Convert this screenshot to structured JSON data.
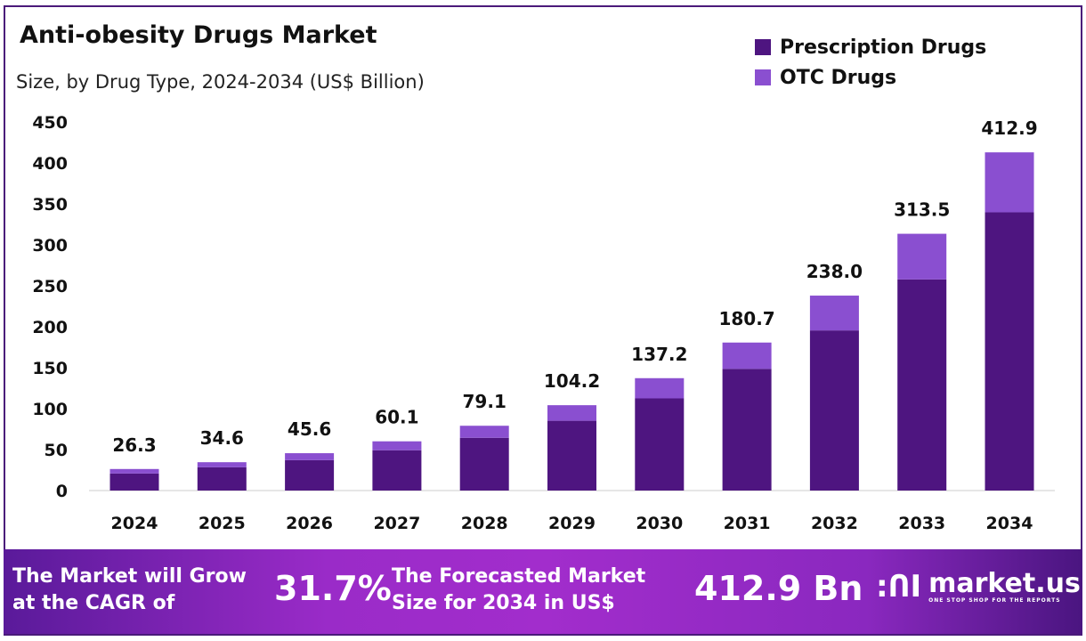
{
  "chart_data": {
    "type": "bar",
    "stacked": true,
    "title": "Anti-obesity Drugs Market",
    "subtitle": "Size, by Drug Type, 2024-2034 (US$ Billion)",
    "categories": [
      "2024",
      "2025",
      "2026",
      "2027",
      "2028",
      "2029",
      "2030",
      "2031",
      "2032",
      "2033",
      "2034"
    ],
    "series": [
      {
        "name": "Prescription Drugs",
        "color": "#4e1580",
        "values": [
          20.8,
          28.4,
          37.1,
          49.2,
          64.4,
          85.2,
          112.5,
          148.6,
          195.5,
          257.8,
          339.7
        ]
      },
      {
        "name": "OTC Drugs",
        "color": "#8a4fd0",
        "values": [
          5.5,
          6.2,
          8.5,
          10.9,
          14.7,
          19.0,
          24.7,
          32.1,
          42.5,
          55.7,
          73.2
        ]
      }
    ],
    "totals": [
      "26.3",
      "34.6",
      "45.6",
      "60.1",
      "79.1",
      "104.2",
      "137.2",
      "180.7",
      "238.0",
      "313.5",
      "412.9"
    ],
    "yticks": [
      "0",
      "50",
      "100",
      "150",
      "200",
      "250",
      "300",
      "350",
      "400",
      "450"
    ],
    "ylim": [
      0,
      450
    ],
    "grid": false,
    "legend": "top-right"
  },
  "footer": {
    "cagr_text": "The Market will Grow at the CAGR of",
    "cagr_line1": "The Market will Grow",
    "cagr_line2": "at the CAGR of",
    "cagr_value": "31.7%",
    "forecast_line1": "The Forecasted Market",
    "forecast_line2": "Size for 2034 in US$",
    "forecast_value": "412.9 Bn",
    "logo_name": "market.us",
    "logo_tagline": "ONE STOP SHOP FOR THE REPORTS"
  }
}
